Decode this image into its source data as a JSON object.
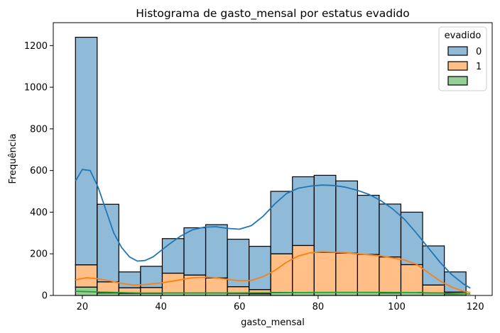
{
  "chart_data": {
    "type": "bar",
    "stacked": true,
    "title": "Histograma de gasto_mensal por estatus evadido",
    "xlabel": "gasto_mensal",
    "ylabel": "Frequência",
    "xlim": [
      12.6,
      124.3
    ],
    "ylim": [
      0,
      1310
    ],
    "xticks": [
      20,
      40,
      60,
      80,
      100,
      120
    ],
    "yticks": [
      0,
      200,
      400,
      600,
      800,
      1000,
      1200
    ],
    "bin_edges": [
      18.25,
      23.77,
      29.29,
      34.81,
      40.34,
      45.86,
      51.38,
      56.9,
      62.42,
      67.94,
      73.47,
      78.99,
      84.51,
      90.03,
      95.55,
      101.07,
      106.6,
      112.12,
      117.64
    ],
    "series": [
      {
        "name": "",
        "color": "#2ca02c",
        "values": [
          40,
          12,
          10,
          10,
          12,
          12,
          12,
          10,
          8,
          15,
          15,
          15,
          15,
          15,
          12,
          15,
          12,
          8
        ]
      },
      {
        "name": "1",
        "color": "#ff7f0e",
        "values": [
          107,
          53,
          27,
          28,
          95,
          86,
          72,
          32,
          20,
          185,
          225,
          192,
          188,
          182,
          173,
          133,
          38,
          8
        ]
      },
      {
        "name": "0",
        "color": "#1f77b4",
        "values": [
          1093,
          373,
          76,
          102,
          166,
          227,
          256,
          228,
          208,
          300,
          330,
          370,
          347,
          284,
          254,
          252,
          188,
          97
        ]
      }
    ],
    "kde_curves": [
      {
        "series": "0",
        "color": "#1f77b4",
        "x": [
          18.25,
          20,
          22,
          24,
          26,
          28,
          30,
          32,
          34,
          36,
          38,
          40,
          42,
          45,
          48,
          51,
          54,
          57,
          60,
          63,
          66,
          69,
          72,
          75,
          78,
          81,
          84,
          87,
          90,
          93,
          96,
          99,
          102,
          105,
          108,
          111,
          114,
          117,
          118.75
        ],
        "y": [
          550,
          605,
          600,
          520,
          410,
          300,
          230,
          185,
          165,
          168,
          185,
          215,
          245,
          285,
          315,
          328,
          330,
          322,
          318,
          335,
          380,
          440,
          490,
          515,
          525,
          530,
          528,
          520,
          505,
          485,
          455,
          415,
          365,
          300,
          230,
          160,
          100,
          55,
          35
        ]
      },
      {
        "series": "1",
        "color": "#ff7f0e",
        "x": [
          18.25,
          21,
          24,
          27,
          30,
          33,
          36,
          40,
          44,
          48,
          52,
          56,
          60,
          63,
          66,
          69,
          72,
          75,
          78,
          81,
          84,
          87,
          90,
          93,
          96,
          99,
          102,
          105,
          108,
          111,
          114,
          117,
          118.75
        ],
        "y": [
          75,
          85,
          80,
          70,
          58,
          50,
          52,
          60,
          72,
          85,
          88,
          80,
          70,
          72,
          90,
          120,
          160,
          190,
          205,
          210,
          208,
          205,
          200,
          195,
          190,
          180,
          170,
          150,
          110,
          70,
          40,
          20,
          14
        ]
      },
      {
        "series": "",
        "color": "#2ca02c",
        "x": [
          18.25,
          25,
          35,
          45,
          55,
          65,
          75,
          85,
          95,
          105,
          115,
          118.75
        ],
        "y": [
          20,
          16,
          12,
          12,
          12,
          13,
          14,
          15,
          15,
          14,
          10,
          7
        ]
      }
    ],
    "legend": {
      "title": "evadido",
      "position": "top-right",
      "entries": [
        {
          "label": "0",
          "color": "#1f77b4"
        },
        {
          "label": "1",
          "color": "#ff7f0e"
        },
        {
          "label": "",
          "color": "#2ca02c"
        }
      ]
    },
    "grid": false
  }
}
